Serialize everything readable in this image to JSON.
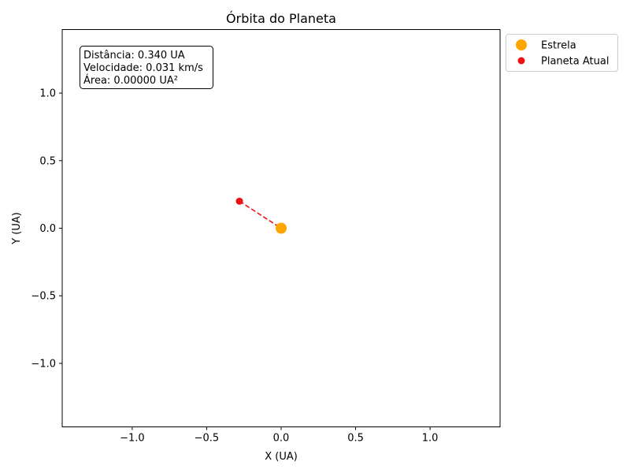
{
  "chart_data": {
    "type": "scatter",
    "title": "Órbita do Planeta",
    "xlabel": "X (UA)",
    "ylabel": "Y (UA)",
    "xlim": [
      -1.47,
      1.47
    ],
    "ylim": [
      -1.47,
      1.47
    ],
    "x_ticks": [
      -1.0,
      -0.5,
      0.0,
      0.5,
      1.0
    ],
    "x_tick_labels": [
      "−1.0",
      "−0.5",
      "0.0",
      "0.5",
      "1.0"
    ],
    "y_ticks": [
      1.0,
      0.5,
      0.0,
      -0.5,
      -1.0
    ],
    "y_tick_labels": [
      "1.0",
      "0.5",
      "0.0",
      "−0.5",
      "−1.0"
    ],
    "grid": false,
    "legend_position": "outside-top-right",
    "series": [
      {
        "name": "Estrela",
        "color": "#ffa500",
        "marker": "circle-large",
        "points": [
          {
            "x": 0.0,
            "y": 0.0
          }
        ]
      },
      {
        "name": "Planeta Atual",
        "color": "#ee1111",
        "marker": "circle",
        "points": [
          {
            "x": -0.28,
            "y": 0.2
          }
        ]
      }
    ],
    "lines": [
      {
        "style": "dashed",
        "color": "#ee1111",
        "from": {
          "x": -0.28,
          "y": 0.2
        },
        "to": {
          "x": 0.0,
          "y": 0.0
        }
      }
    ],
    "annotation": {
      "lines": [
        "Distância: 0.340 UA",
        "Velocidade: 0.031 km/s",
        "Área: 0.00000 UA²"
      ]
    }
  }
}
